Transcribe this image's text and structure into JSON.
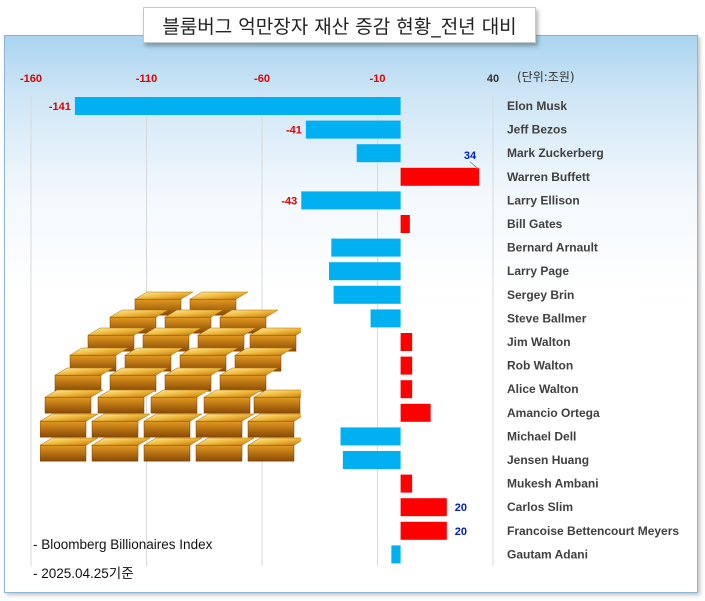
{
  "title": "블룸버그 억만장자 재산 증감 현황_전년 대비",
  "unit_label": "(단위:조원)",
  "notes": [
    "- Bloomberg Billionaires Index",
    "- 2025.04.25기준"
  ],
  "colors": {
    "positive": "#ff0000",
    "negative": "#00b0f0",
    "label_negative": "#e00000",
    "label_positive": "#0020c0"
  },
  "chart_data": {
    "type": "bar",
    "orientation": "horizontal",
    "title": "블룸버그 억만장자 재산 증감 현황_전년 대비",
    "xlabel": "",
    "ylabel": "",
    "xlim": [
      -160,
      40
    ],
    "x_ticks": [
      -160,
      -110,
      -60,
      -10,
      40
    ],
    "x_tick_labels": [
      "-160",
      "-110",
      "-60",
      "-10",
      "40"
    ],
    "grid": true,
    "legend": "none",
    "categories": [
      "Elon Musk",
      "Jeff Bezos",
      "Mark Zuckerberg",
      "Warren Buffett",
      "Larry Ellison",
      "Bill Gates",
      "Bernard Arnault",
      "Larry Page",
      "Sergey Brin",
      "Steve Ballmer",
      "Jim Walton",
      "Rob Walton",
      "Alice Walton",
      "Amancio Ortega",
      "Michael Dell",
      "Jensen Huang",
      "Mukesh Ambani",
      "Carlos Slim",
      "Francoise Bettencourt Meyers",
      "Gautam Adani"
    ],
    "values": [
      -141,
      -41,
      -19,
      34,
      -43,
      4,
      -30,
      -31,
      -29,
      -13,
      5,
      5,
      5,
      13,
      -26,
      -25,
      5,
      20,
      20,
      -4
    ],
    "data_labels": [
      "-141",
      "-41",
      "",
      "34",
      "-43",
      "",
      "",
      "",
      "",
      "",
      "",
      "",
      "",
      "",
      "",
      "",
      "",
      "20",
      "20",
      ""
    ]
  }
}
